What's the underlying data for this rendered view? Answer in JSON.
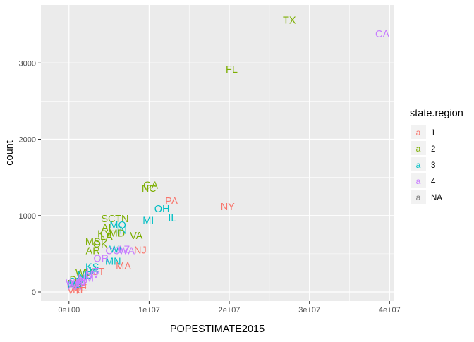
{
  "chart_data": {
    "type": "scatter",
    "xlabel": "POPESTIMATE2015",
    "ylabel": "count",
    "xlim": [
      -3500000,
      40500000
    ],
    "ylim": [
      -120,
      3760
    ],
    "x_ticks": [
      0,
      10000000,
      20000000,
      30000000,
      40000000
    ],
    "x_tick_labels": [
      "0e+00",
      "1e+07",
      "2e+07",
      "3e+07",
      "4e+07"
    ],
    "y_ticks": [
      0,
      1000,
      2000,
      3000
    ],
    "y_tick_labels": [
      "0",
      "1000",
      "2000",
      "3000"
    ],
    "grid": true,
    "legend": {
      "title": "state.region",
      "placement": "right",
      "glyph": "a",
      "entries": [
        {
          "label": "1",
          "color": "#F8766D"
        },
        {
          "label": "2",
          "color": "#7CAE00"
        },
        {
          "label": "3",
          "color": "#00BFC4"
        },
        {
          "label": "4",
          "color": "#C77CFF"
        },
        {
          "label": "NA",
          "color": "#7F7F7F"
        }
      ]
    },
    "series": [
      {
        "name": "1",
        "color": "#F8766D",
        "points": [
          {
            "label": "PA",
            "x": 12800000,
            "y": 1190
          },
          {
            "label": "NY",
            "x": 19800000,
            "y": 1120
          },
          {
            "label": "NJ",
            "x": 8900000,
            "y": 550
          },
          {
            "label": "MA",
            "x": 6800000,
            "y": 340
          },
          {
            "label": "CT",
            "x": 3600000,
            "y": 270
          },
          {
            "label": "NH",
            "x": 1300000,
            "y": 85
          },
          {
            "label": "ME",
            "x": 1300000,
            "y": 55
          },
          {
            "label": "RI",
            "x": 1100000,
            "y": 35
          },
          {
            "label": "VT",
            "x": 600000,
            "y": 25
          }
        ]
      },
      {
        "name": "2",
        "color": "#7CAE00",
        "points": [
          {
            "label": "TX",
            "x": 27500000,
            "y": 3560
          },
          {
            "label": "FL",
            "x": 20300000,
            "y": 2920
          },
          {
            "label": "GA",
            "x": 10200000,
            "y": 1400
          },
          {
            "label": "NC",
            "x": 10000000,
            "y": 1360
          },
          {
            "label": "VA",
            "x": 8400000,
            "y": 740
          },
          {
            "label": "SC",
            "x": 4900000,
            "y": 960
          },
          {
            "label": "TN",
            "x": 6600000,
            "y": 960
          },
          {
            "label": "AL",
            "x": 4850000,
            "y": 840
          },
          {
            "label": "KY",
            "x": 4400000,
            "y": 760
          },
          {
            "label": "LA",
            "x": 4670000,
            "y": 730
          },
          {
            "label": "MD",
            "x": 6000000,
            "y": 770
          },
          {
            "label": "MS",
            "x": 2990000,
            "y": 660
          },
          {
            "label": "OK",
            "x": 3900000,
            "y": 630
          },
          {
            "label": "AR",
            "x": 2980000,
            "y": 540
          },
          {
            "label": "WV",
            "x": 1840000,
            "y": 250
          },
          {
            "label": "DE",
            "x": 950000,
            "y": 160
          },
          {
            "label": "DC",
            "x": 670000,
            "y": 110
          }
        ]
      },
      {
        "name": "3",
        "color": "#00BFC4",
        "points": [
          {
            "label": "IL",
            "x": 12900000,
            "y": 970
          },
          {
            "label": "OH",
            "x": 11600000,
            "y": 1090
          },
          {
            "label": "MI",
            "x": 9900000,
            "y": 940
          },
          {
            "label": "IN",
            "x": 6600000,
            "y": 810
          },
          {
            "label": "MO",
            "x": 6100000,
            "y": 880
          },
          {
            "label": "WI",
            "x": 5800000,
            "y": 560
          },
          {
            "label": "MN",
            "x": 5500000,
            "y": 400
          },
          {
            "label": "IA",
            "x": 3100000,
            "y": 280
          },
          {
            "label": "KS",
            "x": 2900000,
            "y": 330
          },
          {
            "label": "NE",
            "x": 1900000,
            "y": 220
          },
          {
            "label": "SD",
            "x": 860000,
            "y": 140
          },
          {
            "label": "ND",
            "x": 760000,
            "y": 100
          }
        ]
      },
      {
        "name": "4",
        "color": "#C77CFF",
        "points": [
          {
            "label": "CA",
            "x": 39100000,
            "y": 3380
          },
          {
            "label": "WA",
            "x": 7200000,
            "y": 540
          },
          {
            "label": "AZ",
            "x": 6800000,
            "y": 560
          },
          {
            "label": "CO",
            "x": 5500000,
            "y": 540
          },
          {
            "label": "OR",
            "x": 4000000,
            "y": 440
          },
          {
            "label": "UT",
            "x": 3000000,
            "y": 270
          },
          {
            "label": "NV",
            "x": 2900000,
            "y": 230
          },
          {
            "label": "NM",
            "x": 2100000,
            "y": 180
          },
          {
            "label": "ID",
            "x": 1650000,
            "y": 140
          },
          {
            "label": "HI",
            "x": 1430000,
            "y": 120
          },
          {
            "label": "MT",
            "x": 1030000,
            "y": 110
          },
          {
            "label": "AK",
            "x": 740000,
            "y": 80
          },
          {
            "label": "WY",
            "x": 590000,
            "y": 130
          }
        ]
      }
    ]
  }
}
